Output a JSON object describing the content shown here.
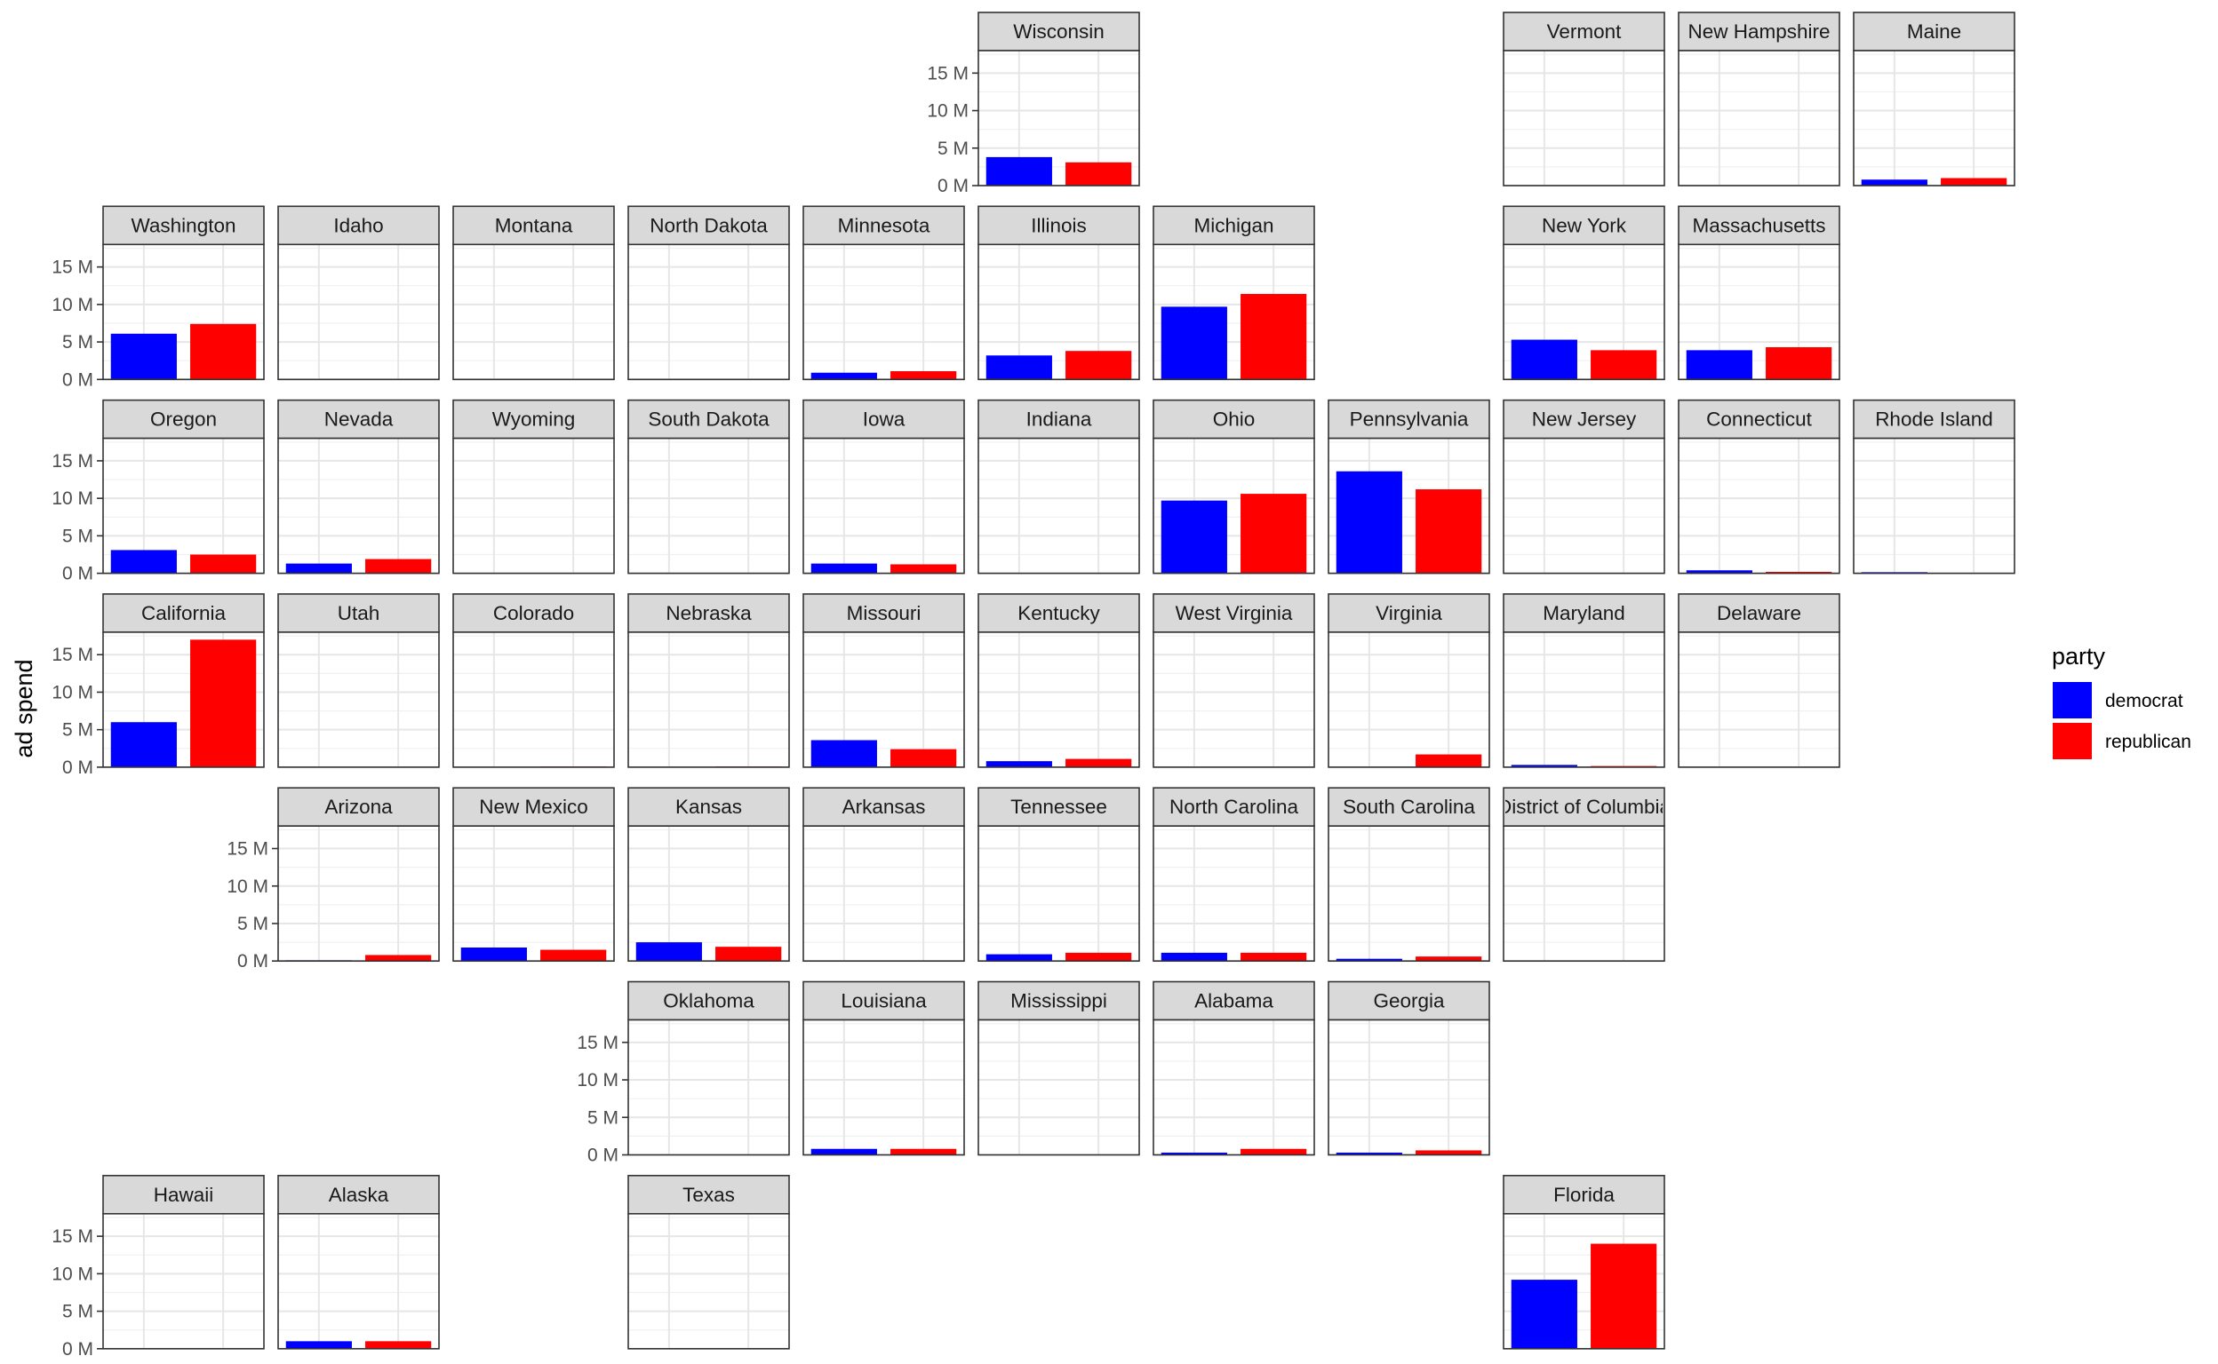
{
  "chart_data": {
    "type": "bar",
    "ylabel": "ad spend",
    "ylim": [
      0,
      18
    ],
    "y_ticks": [
      0,
      5,
      10,
      15
    ],
    "y_tick_labels": [
      "0 M",
      "5 M",
      "10 M",
      "15 M"
    ],
    "categories": [
      "democrat",
      "republican"
    ],
    "legend": {
      "title": "party",
      "placement": "right",
      "entries": [
        {
          "label": "democrat",
          "color": "#0000ff"
        },
        {
          "label": "republican",
          "color": "#ff0000"
        }
      ]
    },
    "colors": {
      "democrat": "#0000ff",
      "republican": "#ff0000"
    },
    "grid": true,
    "grid_layout": {
      "columns": 11,
      "rows": 7
    },
    "panels": [
      {
        "state": "Wisconsin",
        "col": 6,
        "row": 1,
        "democrat": 3.8,
        "republican": 3.1
      },
      {
        "state": "Vermont",
        "col": 9,
        "row": 1,
        "democrat": 0,
        "republican": 0
      },
      {
        "state": "New Hampshire",
        "col": 10,
        "row": 1,
        "democrat": 0,
        "republican": 0
      },
      {
        "state": "Maine",
        "col": 11,
        "row": 1,
        "democrat": 0.8,
        "republican": 1.0
      },
      {
        "state": "Washington",
        "col": 1,
        "row": 2,
        "democrat": 6.1,
        "republican": 7.4
      },
      {
        "state": "Idaho",
        "col": 2,
        "row": 2,
        "democrat": 0,
        "republican": 0
      },
      {
        "state": "Montana",
        "col": 3,
        "row": 2,
        "democrat": 0,
        "republican": 0
      },
      {
        "state": "North Dakota",
        "col": 4,
        "row": 2,
        "democrat": 0,
        "republican": 0
      },
      {
        "state": "Minnesota",
        "col": 5,
        "row": 2,
        "democrat": 0.9,
        "republican": 1.1
      },
      {
        "state": "Illinois",
        "col": 6,
        "row": 2,
        "democrat": 3.2,
        "republican": 3.8
      },
      {
        "state": "Michigan",
        "col": 7,
        "row": 2,
        "democrat": 9.7,
        "republican": 11.4
      },
      {
        "state": "New York",
        "col": 9,
        "row": 2,
        "democrat": 5.3,
        "republican": 3.9
      },
      {
        "state": "Massachusetts",
        "col": 10,
        "row": 2,
        "democrat": 3.9,
        "republican": 4.3
      },
      {
        "state": "Oregon",
        "col": 1,
        "row": 3,
        "democrat": 3.1,
        "republican": 2.5
      },
      {
        "state": "Nevada",
        "col": 2,
        "row": 3,
        "democrat": 1.3,
        "republican": 1.9
      },
      {
        "state": "Wyoming",
        "col": 3,
        "row": 3,
        "democrat": 0,
        "republican": 0
      },
      {
        "state": "South Dakota",
        "col": 4,
        "row": 3,
        "democrat": 0,
        "republican": 0
      },
      {
        "state": "Iowa",
        "col": 5,
        "row": 3,
        "democrat": 1.3,
        "republican": 1.2
      },
      {
        "state": "Indiana",
        "col": 6,
        "row": 3,
        "democrat": 0,
        "republican": 0
      },
      {
        "state": "Ohio",
        "col": 7,
        "row": 3,
        "democrat": 9.7,
        "republican": 10.6
      },
      {
        "state": "Pennsylvania",
        "col": 8,
        "row": 3,
        "democrat": 13.6,
        "republican": 11.2
      },
      {
        "state": "New Jersey",
        "col": 9,
        "row": 3,
        "democrat": 0,
        "republican": 0
      },
      {
        "state": "Connecticut",
        "col": 10,
        "row": 3,
        "democrat": 0.4,
        "republican": 0.2
      },
      {
        "state": "Rhode Island",
        "col": 11,
        "row": 3,
        "democrat": 0.15,
        "republican": 0
      },
      {
        "state": "California",
        "col": 1,
        "row": 4,
        "democrat": 6.0,
        "republican": 17.0
      },
      {
        "state": "Utah",
        "col": 2,
        "row": 4,
        "democrat": 0,
        "republican": 0
      },
      {
        "state": "Colorado",
        "col": 3,
        "row": 4,
        "democrat": 0.05,
        "republican": 0.1
      },
      {
        "state": "Nebraska",
        "col": 4,
        "row": 4,
        "democrat": 0.05,
        "republican": 0.1
      },
      {
        "state": "Missouri",
        "col": 5,
        "row": 4,
        "democrat": 3.6,
        "republican": 2.4
      },
      {
        "state": "Kentucky",
        "col": 6,
        "row": 4,
        "democrat": 0.8,
        "republican": 1.1
      },
      {
        "state": "West Virginia",
        "col": 7,
        "row": 4,
        "democrat": 0,
        "republican": 0
      },
      {
        "state": "Virginia",
        "col": 8,
        "row": 4,
        "democrat": 0,
        "republican": 1.7
      },
      {
        "state": "Maryland",
        "col": 9,
        "row": 4,
        "democrat": 0.3,
        "republican": 0.15
      },
      {
        "state": "Delaware",
        "col": 10,
        "row": 4,
        "democrat": 0,
        "republican": 0
      },
      {
        "state": "Arizona",
        "col": 2,
        "row": 5,
        "democrat": 0.1,
        "republican": 0.8
      },
      {
        "state": "New Mexico",
        "col": 3,
        "row": 5,
        "democrat": 1.8,
        "republican": 1.5
      },
      {
        "state": "Kansas",
        "col": 4,
        "row": 5,
        "democrat": 2.5,
        "republican": 1.9
      },
      {
        "state": "Arkansas",
        "col": 5,
        "row": 5,
        "democrat": 0,
        "republican": 0
      },
      {
        "state": "Tennessee",
        "col": 6,
        "row": 5,
        "democrat": 0.9,
        "republican": 1.1
      },
      {
        "state": "North Carolina",
        "col": 7,
        "row": 5,
        "democrat": 1.1,
        "republican": 1.1
      },
      {
        "state": "South Carolina",
        "col": 8,
        "row": 5,
        "democrat": 0.3,
        "republican": 0.6
      },
      {
        "state": "District of Columbia",
        "col": 9,
        "row": 5,
        "democrat": 0,
        "republican": 0
      },
      {
        "state": "Oklahoma",
        "col": 4,
        "row": 6,
        "democrat": 0,
        "republican": 0
      },
      {
        "state": "Louisiana",
        "col": 5,
        "row": 6,
        "democrat": 0.8,
        "republican": 0.8
      },
      {
        "state": "Mississippi",
        "col": 6,
        "row": 6,
        "democrat": 0,
        "republican": 0
      },
      {
        "state": "Alabama",
        "col": 7,
        "row": 6,
        "democrat": 0.3,
        "republican": 0.8
      },
      {
        "state": "Georgia",
        "col": 8,
        "row": 6,
        "democrat": 0.3,
        "republican": 0.6
      },
      {
        "state": "Hawaii",
        "col": 1,
        "row": 7,
        "democrat": 0,
        "republican": 0
      },
      {
        "state": "Alaska",
        "col": 2,
        "row": 7,
        "democrat": 1.0,
        "republican": 1.0
      },
      {
        "state": "Texas",
        "col": 4,
        "row": 7,
        "democrat": 0,
        "republican": 0
      },
      {
        "state": "Florida",
        "col": 9,
        "row": 7,
        "democrat": 9.2,
        "republican": 14.0
      }
    ]
  }
}
